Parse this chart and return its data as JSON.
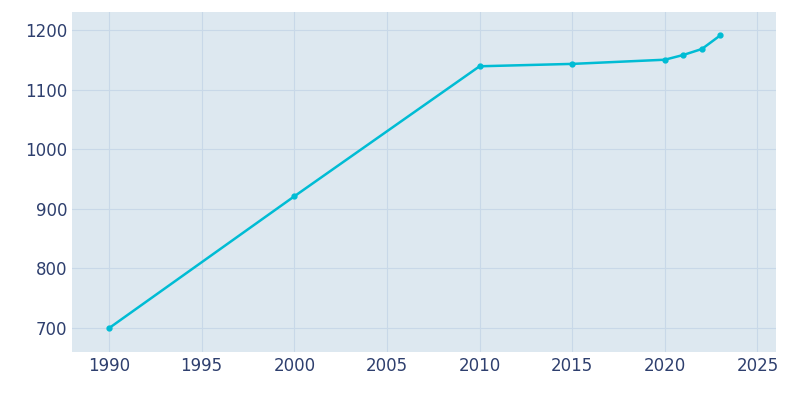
{
  "years": [
    1990,
    2000,
    2010,
    2015,
    2020,
    2021,
    2022,
    2023
  ],
  "population": [
    700,
    921,
    1139,
    1143,
    1150,
    1158,
    1168,
    1191
  ],
  "line_color": "#00BCD4",
  "marker": "o",
  "marker_size": 3.5,
  "linewidth": 1.8,
  "figure_background_color": "#ffffff",
  "axes_background_color": "#dde8f0",
  "grid_color": "#c8d8e8",
  "xlim": [
    1988,
    2026
  ],
  "ylim": [
    660,
    1230
  ],
  "xticks": [
    1990,
    1995,
    2000,
    2005,
    2010,
    2015,
    2020,
    2025
  ],
  "yticks": [
    700,
    800,
    900,
    1000,
    1100,
    1200
  ],
  "tick_label_color": "#2e3f6e",
  "tick_fontsize": 12,
  "figsize": [
    8.0,
    4.0
  ],
  "dpi": 100
}
